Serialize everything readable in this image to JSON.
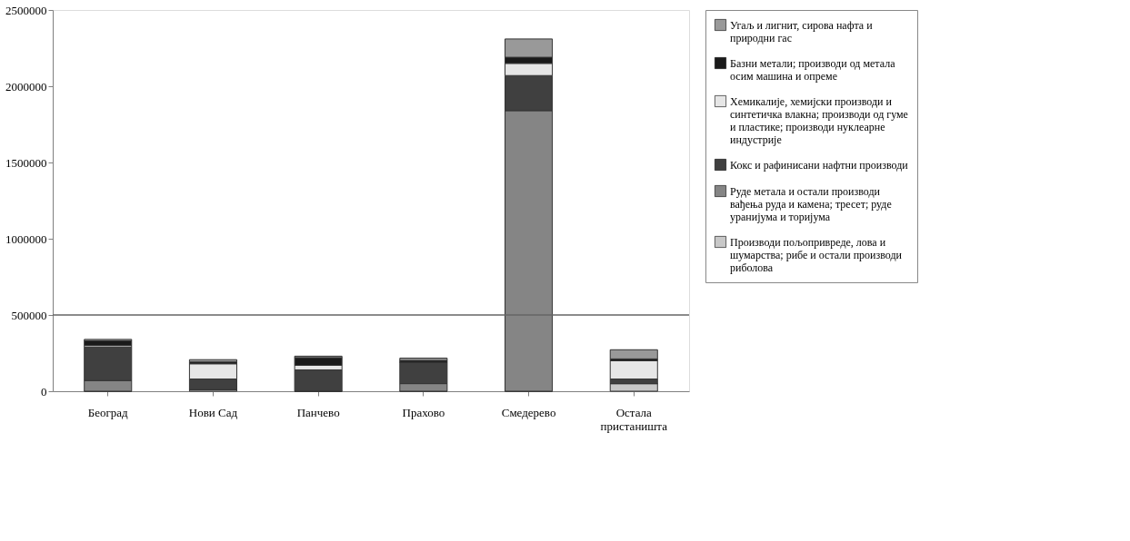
{
  "chart_data": {
    "type": "bar",
    "stacked": true,
    "categories": [
      "Београд",
      "Нови Сад",
      "Панчево",
      "Прахово",
      "Смедерево",
      "Остала пристаништа"
    ],
    "series": [
      {
        "name": "Производи пољопривреде, лова и шумарства; рибе и остали производи риболова",
        "color": "#c8c8c8",
        "values": [
          0,
          10000,
          0,
          0,
          0,
          50000
        ]
      },
      {
        "name": "Руде метала и остали производи вађења руда и камена; тресет; руде уранијума и торијума",
        "color": "#858585",
        "values": [
          70000,
          0,
          0,
          50000,
          1840000,
          0
        ]
      },
      {
        "name": "Кокс и рафинисани нафтни производи",
        "color": "#404040",
        "values": [
          220000,
          70000,
          140000,
          140000,
          230000,
          30000
        ]
      },
      {
        "name": "Хемикалије, хемијски производи и синтетичка влакна; производи од гуме и пластике; производи нуклеарне индустрије",
        "color": "#e6e6e6",
        "values": [
          10000,
          100000,
          30000,
          0,
          80000,
          120000
        ]
      },
      {
        "name": "Базни метали; производи од метала осим машина и опреме",
        "color": "#1a1a1a",
        "values": [
          30000,
          12000,
          50000,
          12000,
          40000,
          12000
        ]
      },
      {
        "name": "Угаљ и лигнит, сирова нафта и природни гас",
        "color": "#999999",
        "values": [
          10000,
          15000,
          10000,
          15000,
          120000,
          60000
        ]
      }
    ],
    "ylim": [
      0,
      2500000
    ],
    "yticks": [
      0,
      500000,
      1000000,
      1500000,
      2000000,
      2500000
    ],
    "ref_lines": [
      {
        "axis": "y",
        "value": 500000,
        "color": "#666666"
      }
    ],
    "grid": false,
    "legend": "right"
  }
}
